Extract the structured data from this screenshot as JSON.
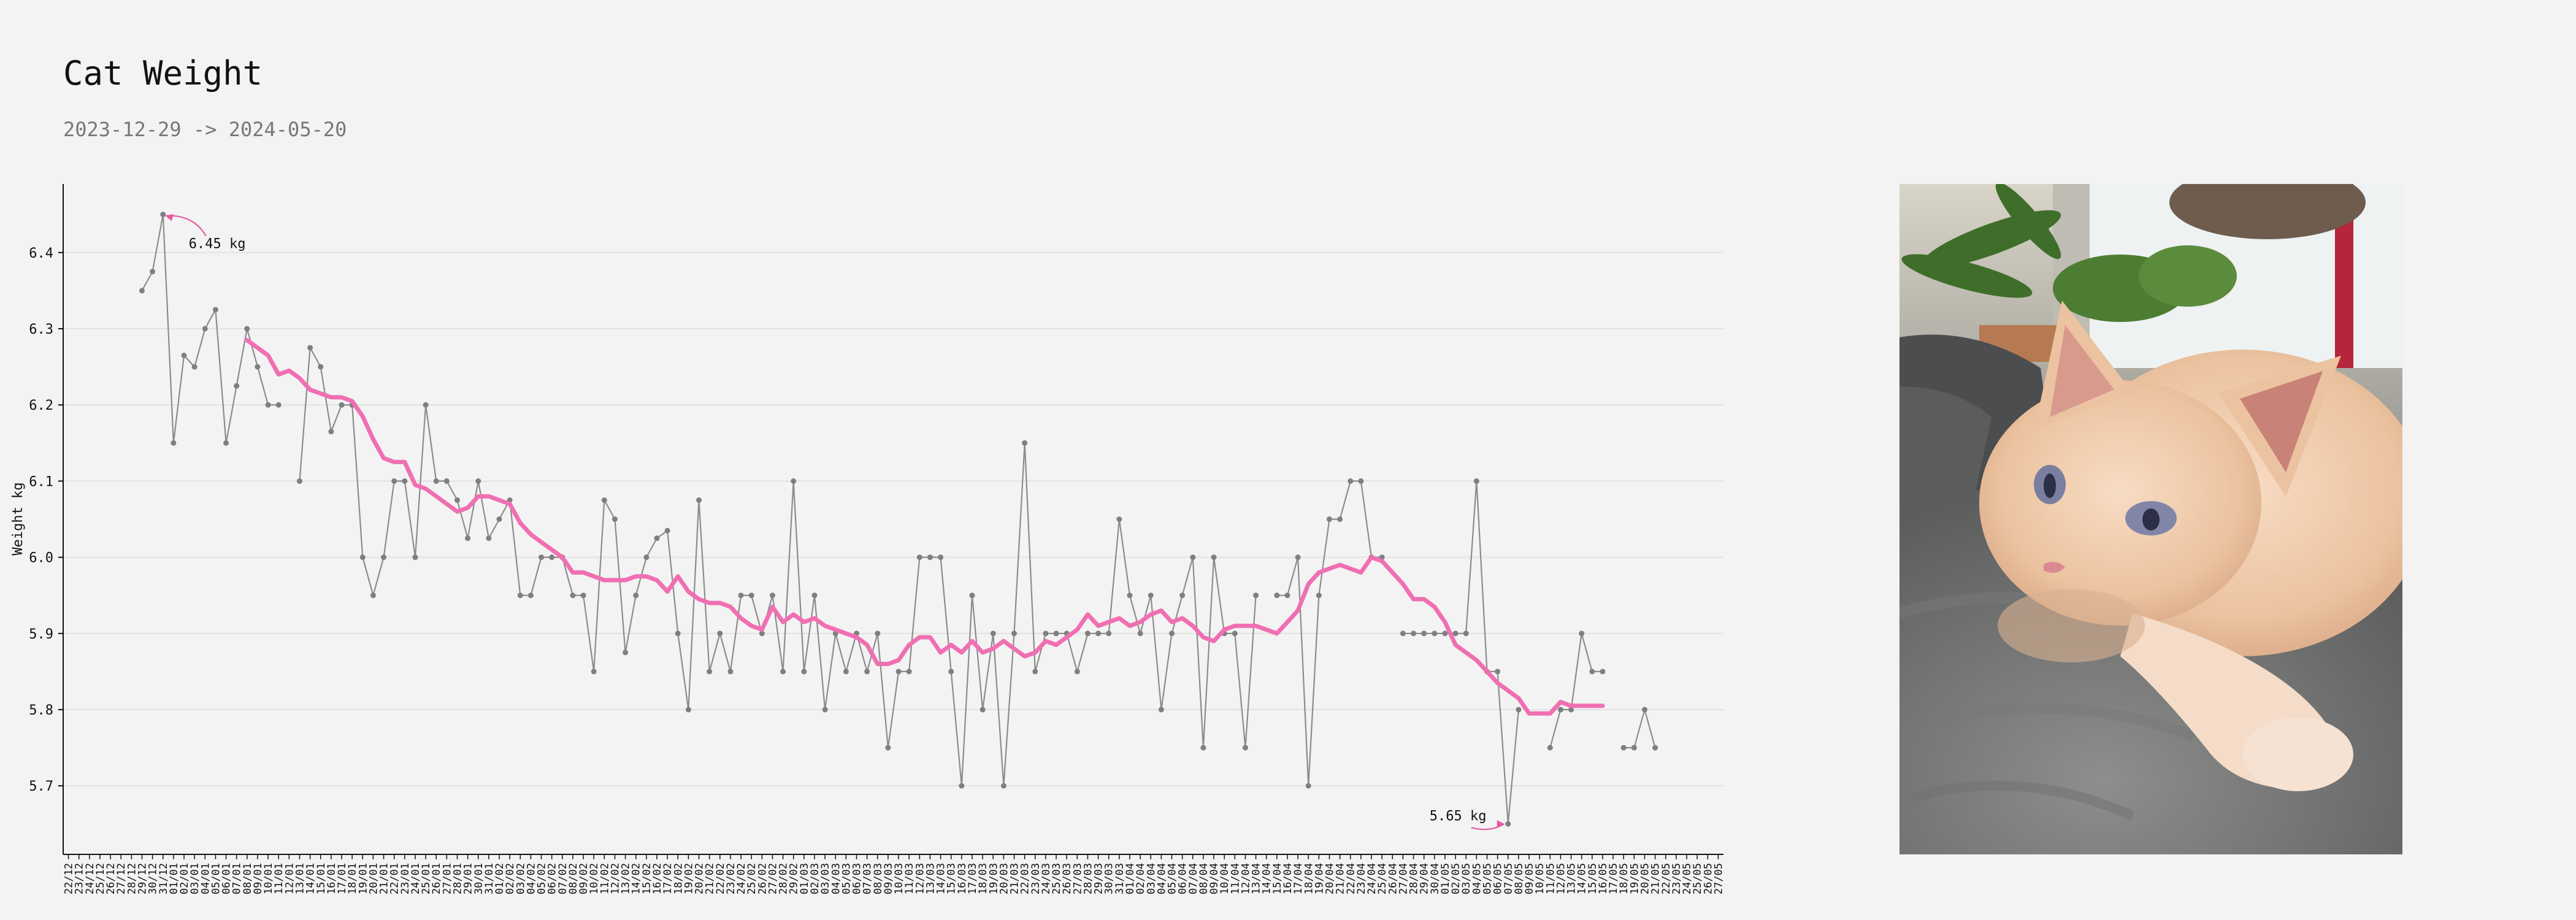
{
  "page": {
    "title": "Cat Weight",
    "subtitle": "2023-12-29 -> 2024-05-20"
  },
  "photo": {
    "icon": "cat-photo-icon"
  },
  "colors": {
    "raw_line": "#8c8c8c",
    "raw_point": "#7f7f7f",
    "smooth_line": "#f06fb2",
    "annotation_arrow": "#e45aa0",
    "gridline": "#e2e2e2",
    "axis": "#111111",
    "background": "#f3f3f3"
  },
  "chart_data": {
    "type": "line",
    "title": "",
    "xlabel": "",
    "ylabel": "Weight kg",
    "grid": "horizontal",
    "x_start": "2023-12-22",
    "x_end": "2024-05-27",
    "xlim": [
      "2023-12-22",
      "2024-05-27"
    ],
    "ylim": [
      5.61,
      6.49
    ],
    "y_ticks": [
      5.7,
      5.8,
      5.9,
      6.0,
      6.1,
      6.2,
      6.3,
      6.4
    ],
    "y_tick_labels": [
      "5.7",
      "5.8",
      "5.9",
      "6.0",
      "6.1",
      "6.2",
      "6.3",
      "6.4"
    ],
    "x_tick_labels": [
      "22/12",
      "23/12",
      "24/12",
      "25/12",
      "26/12",
      "27/12",
      "28/12",
      "29/12",
      "30/12",
      "31/12",
      "01/01",
      "02/01",
      "03/01",
      "04/01",
      "05/01",
      "06/01",
      "07/01",
      "08/01",
      "09/01",
      "10/01",
      "11/01",
      "12/01",
      "13/01",
      "14/01",
      "15/01",
      "16/01",
      "17/01",
      "18/01",
      "19/01",
      "20/01",
      "21/01",
      "22/01",
      "23/01",
      "24/01",
      "25/01",
      "26/01",
      "27/01",
      "28/01",
      "29/01",
      "30/01",
      "31/01",
      "01/02",
      "02/02",
      "03/02",
      "04/02",
      "05/02",
      "06/02",
      "07/02",
      "08/02",
      "09/02",
      "10/02",
      "11/02",
      "12/02",
      "13/02",
      "14/02",
      "15/02",
      "16/02",
      "17/02",
      "18/02",
      "19/02",
      "20/02",
      "21/02",
      "22/02",
      "23/02",
      "24/02",
      "25/02",
      "26/02",
      "27/02",
      "28/02",
      "29/02",
      "01/03",
      "02/03",
      "03/03",
      "04/03",
      "05/03",
      "06/03",
      "07/03",
      "08/03",
      "09/03",
      "10/03",
      "11/03",
      "12/03",
      "13/03",
      "14/03",
      "15/03",
      "16/03",
      "17/03",
      "18/03",
      "19/03",
      "20/03",
      "21/03",
      "22/03",
      "23/03",
      "24/03",
      "25/03",
      "26/03",
      "27/03",
      "28/03",
      "29/03",
      "30/03",
      "31/03",
      "01/04",
      "02/04",
      "03/04",
      "04/04",
      "05/04",
      "06/04",
      "07/04",
      "08/04",
      "09/04",
      "10/04",
      "11/04",
      "12/04",
      "13/04",
      "14/04",
      "15/04",
      "16/04",
      "17/04",
      "18/04",
      "19/04",
      "20/04",
      "21/04",
      "22/04",
      "23/04",
      "24/04",
      "25/04",
      "26/04",
      "27/04",
      "28/04",
      "29/04",
      "30/04",
      "01/05",
      "02/05",
      "03/05",
      "04/05",
      "05/05",
      "06/05",
      "07/05",
      "08/05",
      "09/05",
      "10/05",
      "11/05",
      "12/05",
      "13/05",
      "14/05",
      "15/05",
      "16/05",
      "17/05",
      "18/05",
      "19/05",
      "20/05",
      "21/05",
      "22/05",
      "23/05",
      "24/05",
      "25/05",
      "26/05",
      "27/05"
    ],
    "series": [
      {
        "name": "",
        "style": "raw",
        "values": [
          null,
          null,
          null,
          null,
          null,
          null,
          null,
          6.35,
          6.375,
          6.45,
          6.15,
          6.265,
          6.25,
          6.3,
          6.325,
          6.15,
          6.225,
          6.3,
          6.25,
          6.2,
          6.2,
          null,
          6.1,
          6.275,
          6.25,
          6.165,
          6.2,
          6.2,
          6.0,
          5.95,
          6.0,
          6.1,
          6.1,
          6.0,
          6.2,
          6.1,
          6.1,
          6.075,
          6.025,
          6.1,
          6.025,
          6.05,
          6.075,
          5.95,
          5.95,
          6.0,
          6.0,
          6.0,
          5.95,
          5.95,
          5.85,
          6.075,
          6.05,
          5.875,
          5.95,
          6.0,
          6.025,
          6.035,
          5.9,
          5.8,
          6.075,
          5.85,
          5.9,
          5.85,
          5.95,
          5.95,
          5.9,
          5.95,
          5.85,
          6.1,
          5.85,
          5.95,
          5.8,
          5.9,
          5.85,
          5.9,
          5.85,
          5.9,
          5.75,
          5.85,
          5.85,
          6.0,
          6.0,
          6.0,
          5.85,
          5.7,
          5.95,
          5.8,
          5.9,
          5.7,
          5.9,
          6.15,
          5.85,
          5.9,
          5.9,
          5.9,
          5.85,
          5.9,
          5.9,
          5.9,
          6.05,
          5.95,
          5.9,
          5.95,
          5.8,
          5.9,
          5.95,
          6.0,
          5.75,
          6.0,
          5.9,
          5.9,
          5.75,
          5.95,
          null,
          5.95,
          5.95,
          6.0,
          5.7,
          5.95,
          6.05,
          6.05,
          6.1,
          6.1,
          6.0,
          6.0,
          null,
          5.9,
          5.9,
          5.9,
          5.9,
          5.9,
          5.9,
          5.9,
          6.1,
          5.85,
          5.85,
          5.65,
          5.8,
          null,
          null,
          5.75,
          5.8,
          5.8,
          5.9,
          5.85,
          5.85,
          null,
          5.75,
          5.75,
          5.8,
          5.75,
          null,
          null,
          null,
          null,
          null,
          null,
          null
        ]
      },
      {
        "name": "",
        "style": "smoothed",
        "values": [
          null,
          null,
          null,
          null,
          null,
          null,
          null,
          null,
          null,
          null,
          null,
          null,
          null,
          null,
          null,
          null,
          null,
          6.285,
          6.275,
          6.265,
          6.24,
          6.245,
          6.235,
          6.22,
          6.215,
          6.21,
          6.21,
          6.205,
          6.185,
          6.155,
          6.13,
          6.125,
          6.125,
          6.095,
          6.09,
          6.08,
          6.07,
          6.06,
          6.065,
          6.08,
          6.08,
          6.075,
          6.07,
          6.045,
          6.03,
          6.02,
          6.01,
          6.0,
          5.98,
          5.98,
          5.975,
          5.97,
          5.97,
          5.97,
          5.975,
          5.975,
          5.97,
          5.955,
          5.975,
          5.955,
          5.945,
          5.94,
          5.94,
          5.935,
          5.92,
          5.91,
          5.905,
          5.935,
          5.915,
          5.925,
          5.915,
          5.92,
          5.91,
          5.905,
          5.9,
          5.895,
          5.885,
          5.86,
          5.86,
          5.865,
          5.885,
          5.895,
          5.895,
          5.875,
          5.885,
          5.875,
          5.89,
          5.875,
          5.88,
          5.89,
          5.88,
          5.87,
          5.875,
          5.89,
          5.885,
          5.895,
          5.905,
          5.925,
          5.91,
          5.915,
          5.92,
          5.91,
          5.915,
          5.925,
          5.93,
          5.915,
          5.92,
          5.91,
          5.895,
          5.89,
          5.905,
          5.91,
          5.91,
          5.91,
          5.905,
          5.9,
          5.915,
          5.93,
          5.965,
          5.98,
          5.985,
          5.99,
          5.985,
          5.98,
          6.0,
          5.995,
          5.98,
          5.965,
          5.945,
          5.945,
          5.935,
          5.915,
          5.885,
          5.875,
          5.865,
          5.85,
          5.835,
          5.825,
          5.815,
          5.795,
          5.795,
          5.795,
          5.81,
          5.805,
          5.805,
          5.805,
          5.805,
          null,
          null,
          null,
          null,
          null,
          null,
          null
        ]
      }
    ],
    "annotations": [
      {
        "text": "6.45 kg",
        "x": "2023-12-31",
        "y": 6.45
      },
      {
        "text": "5.65 kg",
        "x": "2024-05-07",
        "y": 5.65
      }
    ]
  }
}
